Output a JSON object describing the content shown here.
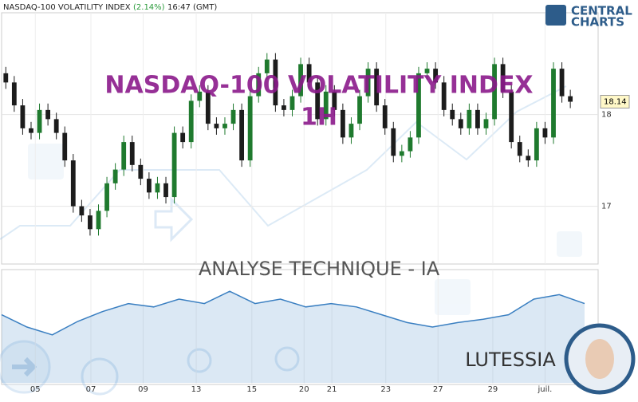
{
  "header": {
    "symbol": "NASDAQ-100 VOLATILITY INDEX",
    "change": "(2.14%)",
    "time": "16:47 (GMT)"
  },
  "logo": {
    "line1": "CENTRAL",
    "line2": "CHARTS"
  },
  "watermark": {
    "title": "NASDAQ-100 VOLATILITY INDEX",
    "subtitle": "1H",
    "caption": "ANALYSE TECHNIQUE - IA",
    "brand": "LUTESSIA"
  },
  "chart_data": {
    "type": "candlestick",
    "x": [
      0,
      1,
      2,
      3,
      4,
      5,
      6,
      7,
      8,
      9,
      10,
      11,
      12,
      13,
      14,
      15,
      16,
      17,
      18,
      19,
      20,
      21,
      22,
      23,
      24,
      25,
      26,
      27,
      28,
      29,
      30,
      31,
      32,
      33,
      34,
      35,
      36,
      37,
      38,
      39,
      40,
      41,
      42,
      43,
      44,
      45,
      46,
      47,
      48,
      49,
      50,
      51,
      52,
      53,
      54,
      55,
      56,
      57,
      58,
      59,
      60,
      61,
      62,
      63,
      64,
      65,
      66,
      67
    ],
    "open": [
      18.45,
      18.35,
      18.1,
      17.85,
      17.8,
      18.05,
      17.95,
      17.8,
      17.5,
      17.0,
      16.9,
      16.75,
      16.95,
      17.25,
      17.4,
      17.7,
      17.45,
      17.3,
      17.15,
      17.25,
      17.1,
      17.8,
      17.7,
      18.15,
      18.25,
      17.9,
      17.85,
      17.9,
      18.05,
      17.5,
      18.2,
      18.45,
      18.6,
      18.1,
      18.05,
      18.2,
      18.55,
      18.35,
      17.95,
      18.25,
      18.05,
      17.75,
      17.9,
      18.2,
      18.5,
      18.1,
      17.85,
      17.55,
      17.6,
      17.75,
      18.45,
      18.5,
      18.35,
      18.05,
      17.95,
      17.85,
      18.05,
      17.85,
      17.95,
      18.55,
      18.25,
      17.7,
      17.55,
      17.5,
      17.85,
      17.75,
      18.5,
      18.2
    ],
    "high": [
      18.52,
      18.42,
      18.17,
      17.92,
      18.12,
      18.12,
      18.02,
      17.87,
      17.57,
      17.07,
      16.97,
      17.02,
      17.32,
      17.47,
      17.77,
      17.77,
      17.52,
      17.37,
      17.32,
      17.32,
      17.87,
      17.87,
      18.22,
      18.32,
      18.32,
      17.97,
      17.97,
      18.12,
      18.12,
      18.27,
      18.52,
      18.67,
      18.67,
      18.17,
      18.27,
      18.62,
      18.62,
      18.42,
      18.32,
      18.32,
      18.12,
      17.97,
      18.27,
      18.57,
      18.57,
      18.17,
      17.92,
      17.67,
      17.82,
      18.52,
      18.57,
      18.57,
      18.42,
      18.12,
      18.02,
      18.12,
      18.12,
      18.02,
      18.62,
      18.62,
      18.32,
      17.77,
      17.62,
      17.92,
      17.92,
      18.57,
      18.57,
      18.27
    ],
    "low": [
      18.28,
      18.03,
      17.78,
      17.73,
      17.73,
      17.88,
      17.73,
      17.43,
      16.93,
      16.83,
      16.68,
      16.68,
      16.88,
      17.18,
      17.33,
      17.38,
      17.23,
      17.08,
      17.08,
      17.03,
      17.03,
      17.63,
      17.63,
      18.08,
      17.83,
      17.78,
      17.78,
      17.83,
      17.43,
      17.43,
      18.13,
      18.38,
      18.03,
      17.98,
      17.98,
      18.13,
      18.28,
      17.88,
      17.88,
      17.98,
      17.68,
      17.68,
      17.83,
      18.13,
      18.03,
      17.78,
      17.48,
      17.48,
      17.53,
      17.68,
      18.38,
      18.28,
      17.98,
      17.88,
      17.78,
      17.78,
      17.78,
      17.78,
      17.88,
      18.18,
      17.63,
      17.48,
      17.43,
      17.43,
      17.68,
      17.68,
      18.13,
      18.07
    ],
    "close": [
      18.35,
      18.1,
      17.85,
      17.8,
      18.05,
      17.95,
      17.8,
      17.5,
      17.0,
      16.9,
      16.75,
      16.95,
      17.25,
      17.4,
      17.7,
      17.45,
      17.3,
      17.15,
      17.25,
      17.1,
      17.8,
      17.7,
      18.15,
      18.25,
      17.9,
      17.85,
      17.9,
      18.05,
      17.5,
      18.2,
      18.45,
      18.6,
      18.1,
      18.05,
      18.2,
      18.55,
      18.35,
      17.95,
      18.25,
      18.05,
      17.75,
      17.9,
      18.2,
      18.5,
      18.1,
      17.85,
      17.55,
      17.6,
      17.75,
      18.45,
      18.5,
      18.35,
      18.05,
      17.95,
      17.85,
      18.05,
      17.85,
      17.95,
      18.55,
      18.25,
      17.7,
      17.55,
      17.5,
      17.85,
      17.75,
      18.5,
      18.2,
      18.14
    ],
    "up_color": "#1f7a2e",
    "down_color": "#1c1c1c",
    "xlim": [
      -0.5,
      70.3
    ],
    "xticks": [
      {
        "value": 3.5,
        "label": "05"
      },
      {
        "value": 10.1,
        "label": "07"
      },
      {
        "value": 16.3,
        "label": "09"
      },
      {
        "value": 22.6,
        "label": "13"
      },
      {
        "value": 29.2,
        "label": "15"
      },
      {
        "value": 35.4,
        "label": "20"
      },
      {
        "value": 38.7,
        "label": "21"
      },
      {
        "value": 45.1,
        "label": "23"
      },
      {
        "value": 51.3,
        "label": "27"
      },
      {
        "value": 57.8,
        "label": "29"
      },
      {
        "value": 64.0,
        "label": "juil."
      }
    ],
    "ylim": [
      16.37,
      19.11
    ],
    "yticks": [
      17,
      18
    ],
    "grid": true,
    "indicator": {
      "color": "#3a7fc1",
      "ylim": [
        0,
        100
      ],
      "values": [
        61,
        50,
        43,
        55,
        64,
        71,
        68,
        75,
        71,
        82,
        71,
        75,
        68,
        71,
        68,
        61,
        54,
        50,
        54,
        57,
        61,
        75,
        79,
        71
      ]
    }
  }
}
